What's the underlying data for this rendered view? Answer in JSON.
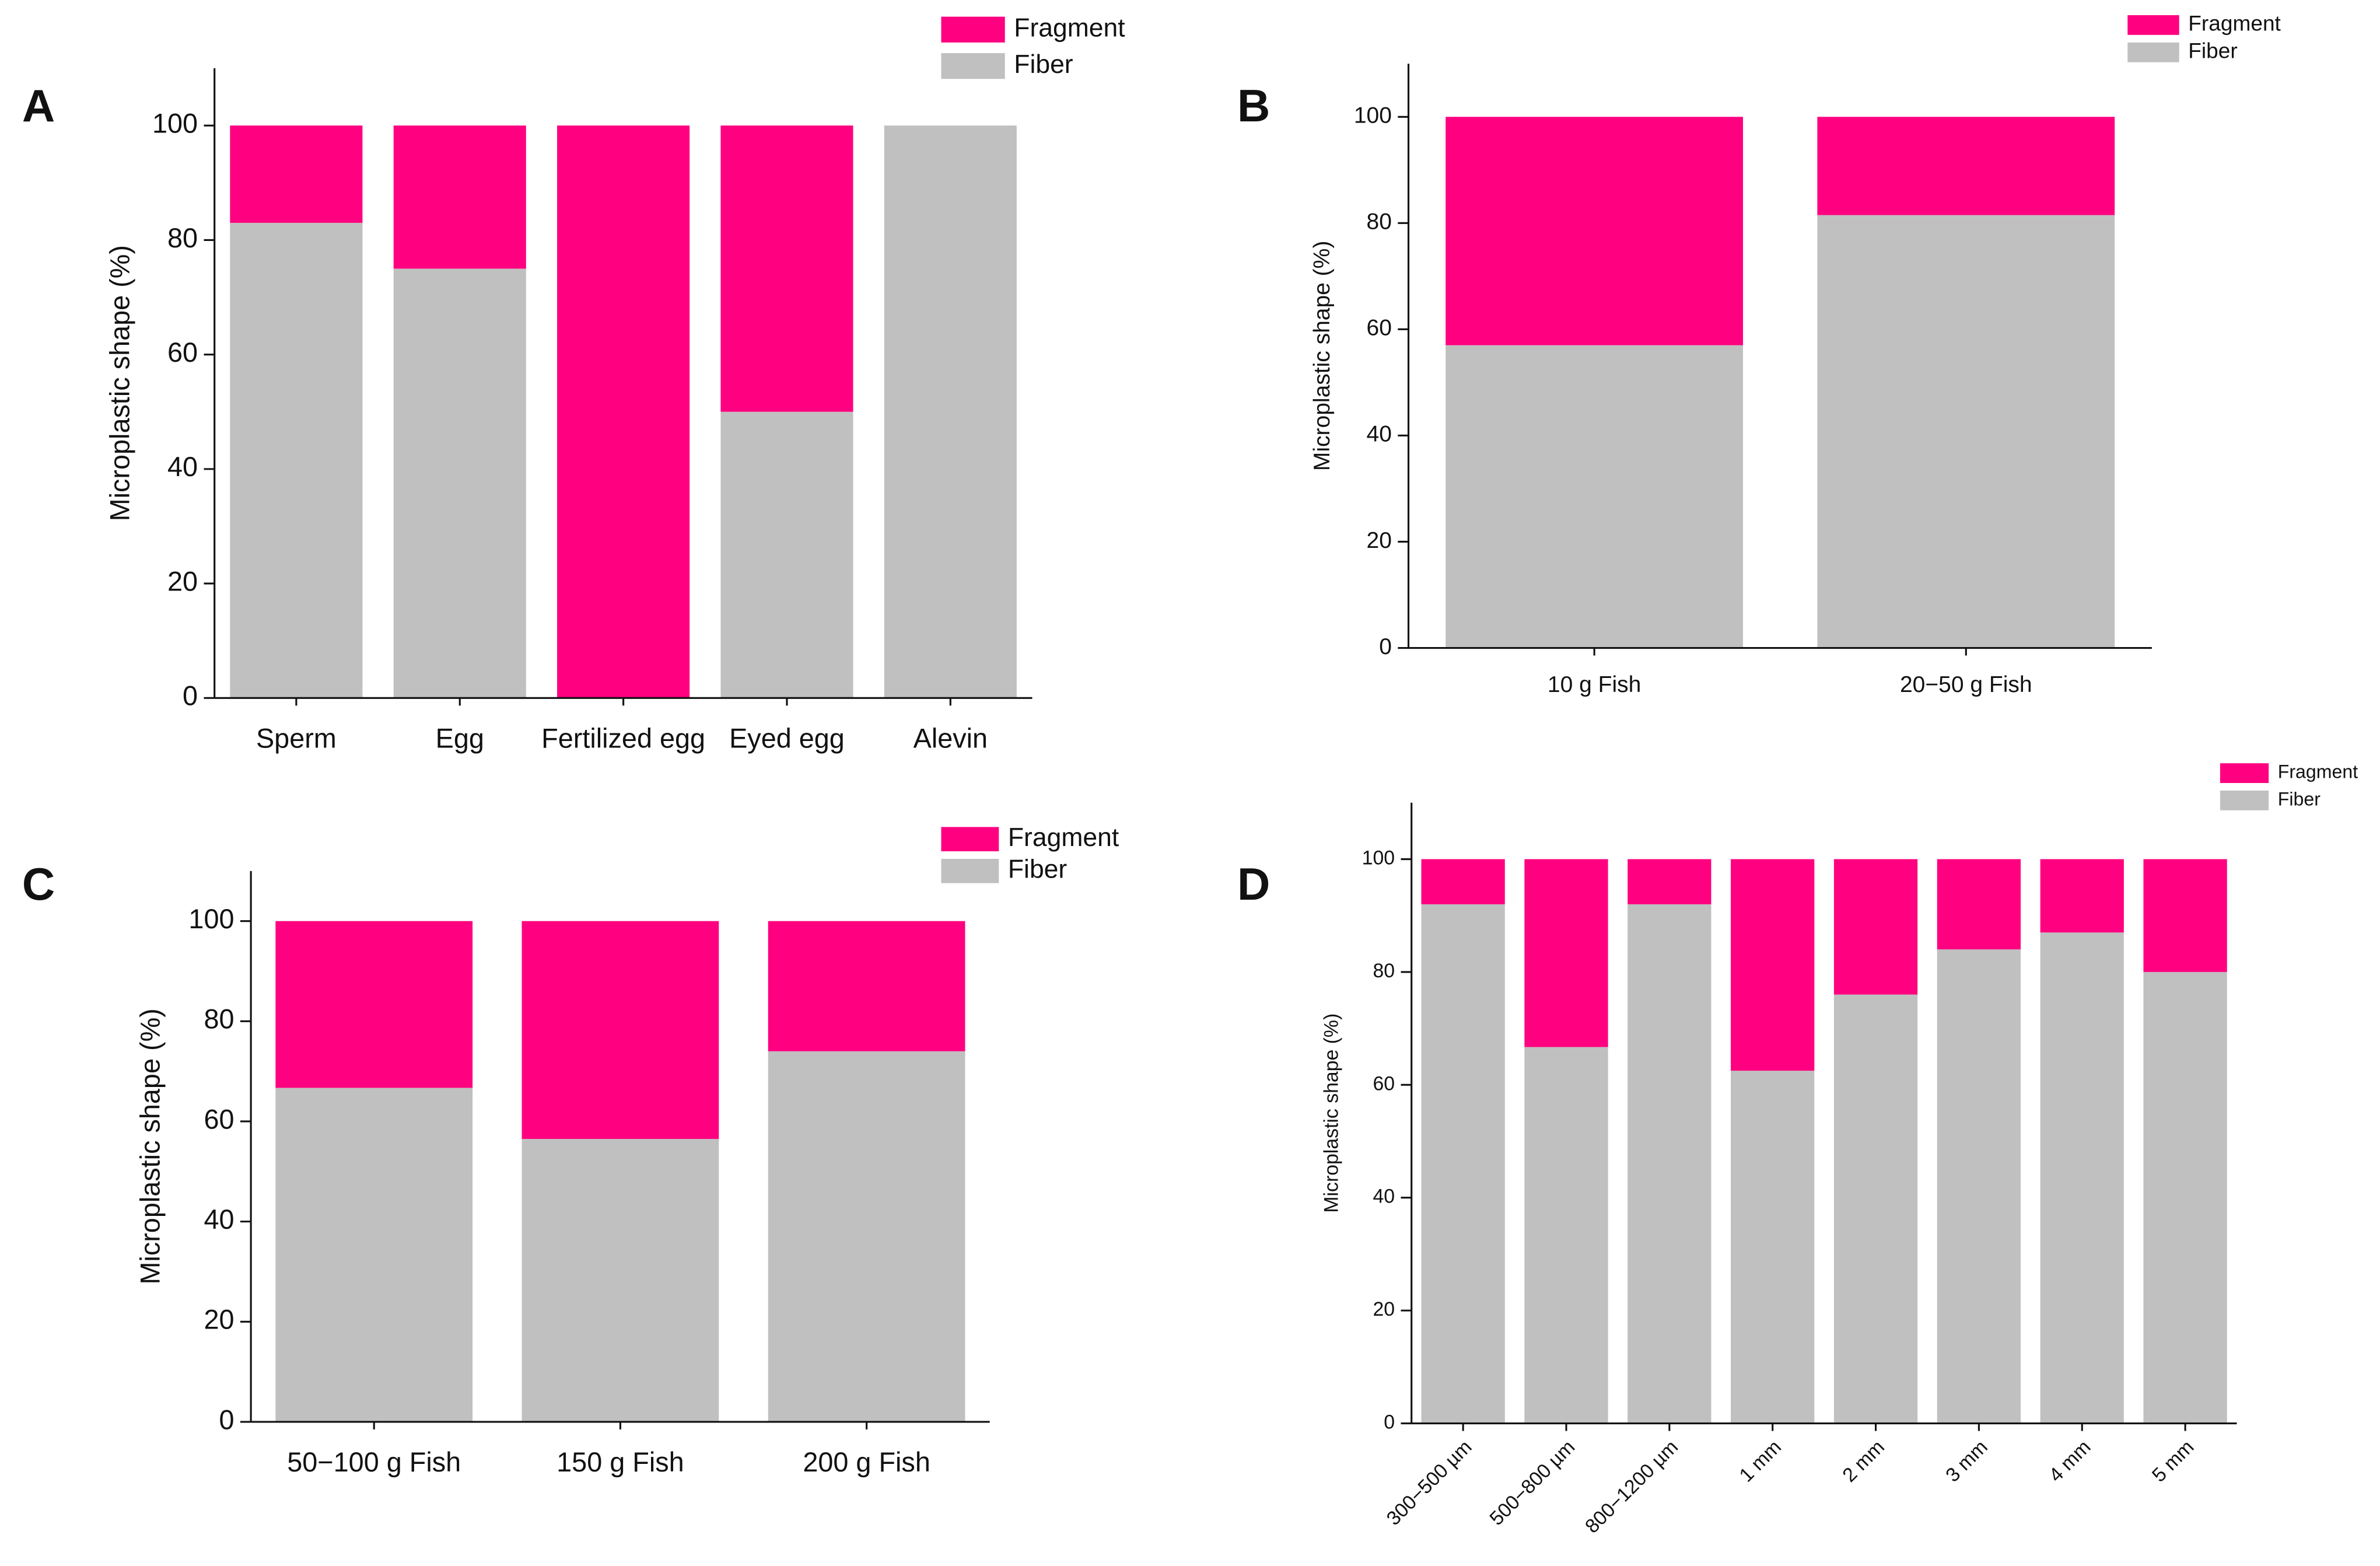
{
  "chart_data": [
    {
      "type": "stacked_bar",
      "panel": "A",
      "ylabel": "Microplastic shape (%)",
      "categories": [
        "Sperm",
        "Egg",
        "Fertilized egg",
        "Eyed egg",
        "Alevin"
      ],
      "series": [
        {
          "name": "Fragment",
          "color": "#ff0080",
          "values": [
            17,
            25,
            100,
            50,
            0
          ]
        },
        {
          "name": "Fiber",
          "color": "#c0c0c0",
          "values": [
            83,
            75,
            0,
            50,
            100
          ]
        }
      ],
      "ylim": [
        0,
        110
      ],
      "yticks": [
        0,
        20,
        40,
        60,
        80,
        100
      ]
    },
    {
      "type": "stacked_bar",
      "panel": "B",
      "ylabel": "Microplastic shape (%)",
      "categories": [
        "10 g Fish",
        "20−50 g Fish"
      ],
      "series": [
        {
          "name": "Fragment",
          "color": "#ff0080",
          "values": [
            43,
            18.5
          ]
        },
        {
          "name": "Fiber",
          "color": "#c0c0c0",
          "values": [
            57,
            81.5
          ]
        }
      ],
      "ylim": [
        0,
        110
      ],
      "yticks": [
        0,
        20,
        40,
        60,
        80,
        100
      ]
    },
    {
      "type": "stacked_bar",
      "panel": "C",
      "ylabel": "Microplastic shape (%)",
      "categories": [
        "50−100 g Fish",
        "150 g Fish",
        "200 g Fish"
      ],
      "series": [
        {
          "name": "Fragment",
          "color": "#ff0080",
          "values": [
            33.3,
            43.5,
            26
          ]
        },
        {
          "name": "Fiber",
          "color": "#c0c0c0",
          "values": [
            66.7,
            56.5,
            74
          ]
        }
      ],
      "ylim": [
        0,
        110
      ],
      "yticks": [
        0,
        20,
        40,
        60,
        80,
        100
      ]
    },
    {
      "type": "stacked_bar",
      "panel": "D",
      "ylabel": "Microplastic shape (%)",
      "categories": [
        "300−500 µm",
        "500−800 µm",
        "800−1200 µm",
        "1 mm",
        "2 mm",
        "3 mm",
        "4 mm",
        "5 mm"
      ],
      "series": [
        {
          "name": "Fragment",
          "color": "#ff0080",
          "values": [
            8,
            33.3,
            8,
            37.5,
            24,
            16,
            13,
            20
          ]
        },
        {
          "name": "Fiber",
          "color": "#c0c0c0",
          "values": [
            92,
            66.7,
            92,
            62.5,
            76,
            84,
            87,
            80
          ]
        }
      ],
      "ylim": [
        0,
        110
      ],
      "yticks": [
        0,
        20,
        40,
        60,
        80,
        100
      ]
    }
  ]
}
